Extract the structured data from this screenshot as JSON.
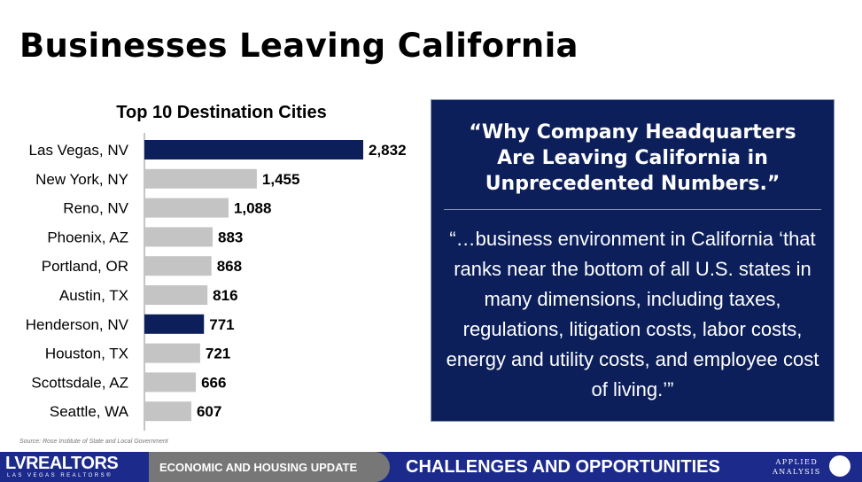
{
  "title": "Businesses Leaving California",
  "chart_data": {
    "type": "bar",
    "orientation": "horizontal",
    "title": "Top 10 Destination Cities",
    "categories": [
      "Las Vegas, NV",
      "New York, NY",
      "Reno, NV",
      "Phoenix, AZ",
      "Portland, OR",
      "Austin, TX",
      "Henderson, NV",
      "Houston, TX",
      "Scottsdale, AZ",
      "Seattle, WA"
    ],
    "values": [
      2832,
      1455,
      1088,
      883,
      868,
      816,
      771,
      721,
      666,
      607
    ],
    "data_labels": [
      "2,832",
      "1,455",
      "1,088",
      "883",
      "868",
      "816",
      "771",
      "721",
      "666",
      "607"
    ],
    "highlight_color": "#0c1f5b",
    "default_color": "#c4c4c4",
    "highlighted": [
      "Las Vegas, NV",
      "Henderson, NV"
    ]
  },
  "quote": {
    "headline": "“Why Company Headquarters Are Leaving California in Unprecedented Numbers.”",
    "body": "“…business environment in California ‘that ranks near the bottom of all U.S. states in many dimensions, including taxes, regulations, litigation costs, labor costs, energy and utility costs, and employee cost of living.’”"
  },
  "source": "Source: Rose Institute of State and Local Government",
  "footer": {
    "logo": "LVREALTORS",
    "logo_sub": "LAS VEGAS REALTORS®",
    "section": "ECONOMIC AND HOUSING UPDATE",
    "topic": "CHALLENGES AND OPPORTUNITIES",
    "partner_line1": "APPLIED",
    "partner_line2": "ANALYSIS"
  }
}
